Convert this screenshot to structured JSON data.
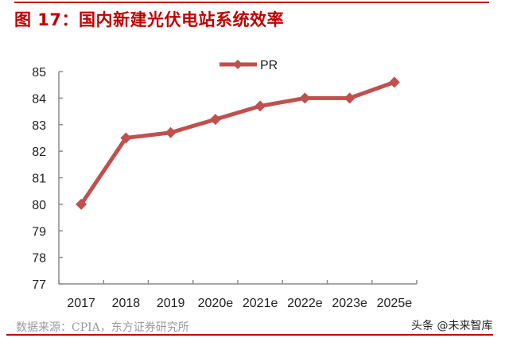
{
  "figure": {
    "title": "图 17：国内新建光伏电站系统效率",
    "source": "数据来源：CPIA，东方证券研究所",
    "watermark": "头条 @未来智库",
    "accent_color": "#c00000",
    "series_color": "#c0504d"
  },
  "chart_data": {
    "type": "line",
    "title": "图 17：国内新建光伏电站系统效率",
    "xlabel": "",
    "ylabel": "",
    "categories": [
      "2017",
      "2018",
      "2019",
      "2020e",
      "2021e",
      "2022e",
      "2023e",
      "2025e"
    ],
    "series": [
      {
        "name": "PR",
        "values": [
          80.0,
          82.5,
          82.7,
          83.2,
          83.7,
          84.0,
          84.0,
          84.6
        ],
        "marker": "diamond",
        "color": "#c0504d"
      }
    ],
    "ylim": [
      77,
      85
    ],
    "yticks": [
      77,
      78,
      79,
      80,
      81,
      82,
      83,
      84,
      85
    ],
    "grid": false,
    "legend_position": "top"
  }
}
